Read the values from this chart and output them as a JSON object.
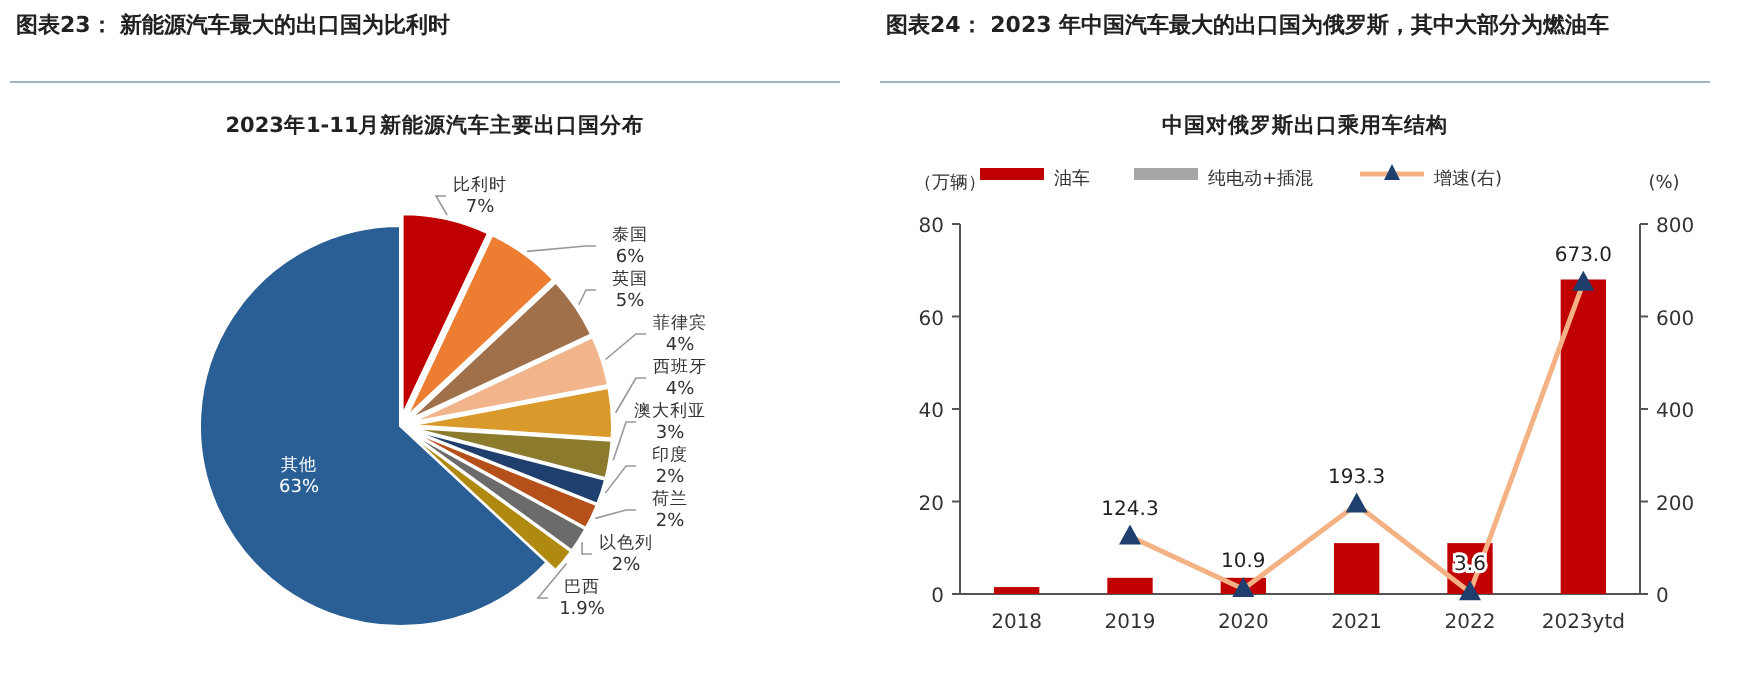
{
  "chart_data": [
    {
      "type": "pie",
      "title": "图表23：  新能源汽车最大的出口国为比利时",
      "subtitle": "2023年1-11月新能源汽车主要出口国分布",
      "categories": [
        "比利时",
        "泰国",
        "英国",
        "菲律宾",
        "西班牙",
        "澳大利亚",
        "印度",
        "荷兰",
        "以色列",
        "巴西",
        "其他"
      ],
      "values": [
        7,
        6,
        5,
        4,
        4,
        3,
        2,
        2,
        2,
        1.9,
        63
      ],
      "colors": [
        "#c00000",
        "#ed7d31",
        "#a0704a",
        "#f2b48a",
        "#d99a2b",
        "#8c7a2d",
        "#1f3f6e",
        "#b5501a",
        "#6b6b6b",
        "#b08a10",
        "#2a5f96"
      ],
      "value_labels": [
        "7%",
        "6%",
        "5%",
        "4%",
        "4%",
        "3%",
        "2%",
        "2%",
        "2%",
        "1.9%",
        "63%"
      ]
    },
    {
      "type": "bar",
      "title": "图表24：  2023 年中国汽车最大的出口国为俄罗斯，其中大部分为燃油车",
      "subtitle": "中国对俄罗斯出口乘用车结构",
      "ylabel": "（万辆）",
      "y2label": "(%)",
      "categories": [
        "2018",
        "2019",
        "2020",
        "2021",
        "2022",
        "2023ytd"
      ],
      "series": [
        {
          "name": "油车",
          "color": "#c00000",
          "values": [
            1.5,
            3.5,
            3.5,
            11,
            11,
            68
          ]
        },
        {
          "name": "纯电动+插混",
          "color": "#a6a6a6",
          "values": [
            0,
            0,
            0,
            0,
            0,
            0
          ]
        },
        {
          "name": "增速(右)",
          "type": "line",
          "axis": "y2",
          "color": "#f4b183",
          "marker": "triangle",
          "values": [
            null,
            124.3,
            10.9,
            193.3,
            3.6,
            673.0
          ],
          "value_labels": [
            null,
            "124.3",
            "10.9",
            "193.3",
            "3.6",
            "673.0"
          ]
        }
      ],
      "ylim": [
        0,
        80
      ],
      "yticks": [
        0,
        20,
        40,
        60,
        80
      ],
      "y2lim": [
        0,
        800
      ],
      "y2ticks": [
        0,
        200,
        400,
        600,
        800
      ],
      "legend": "top",
      "grid": false
    }
  ]
}
